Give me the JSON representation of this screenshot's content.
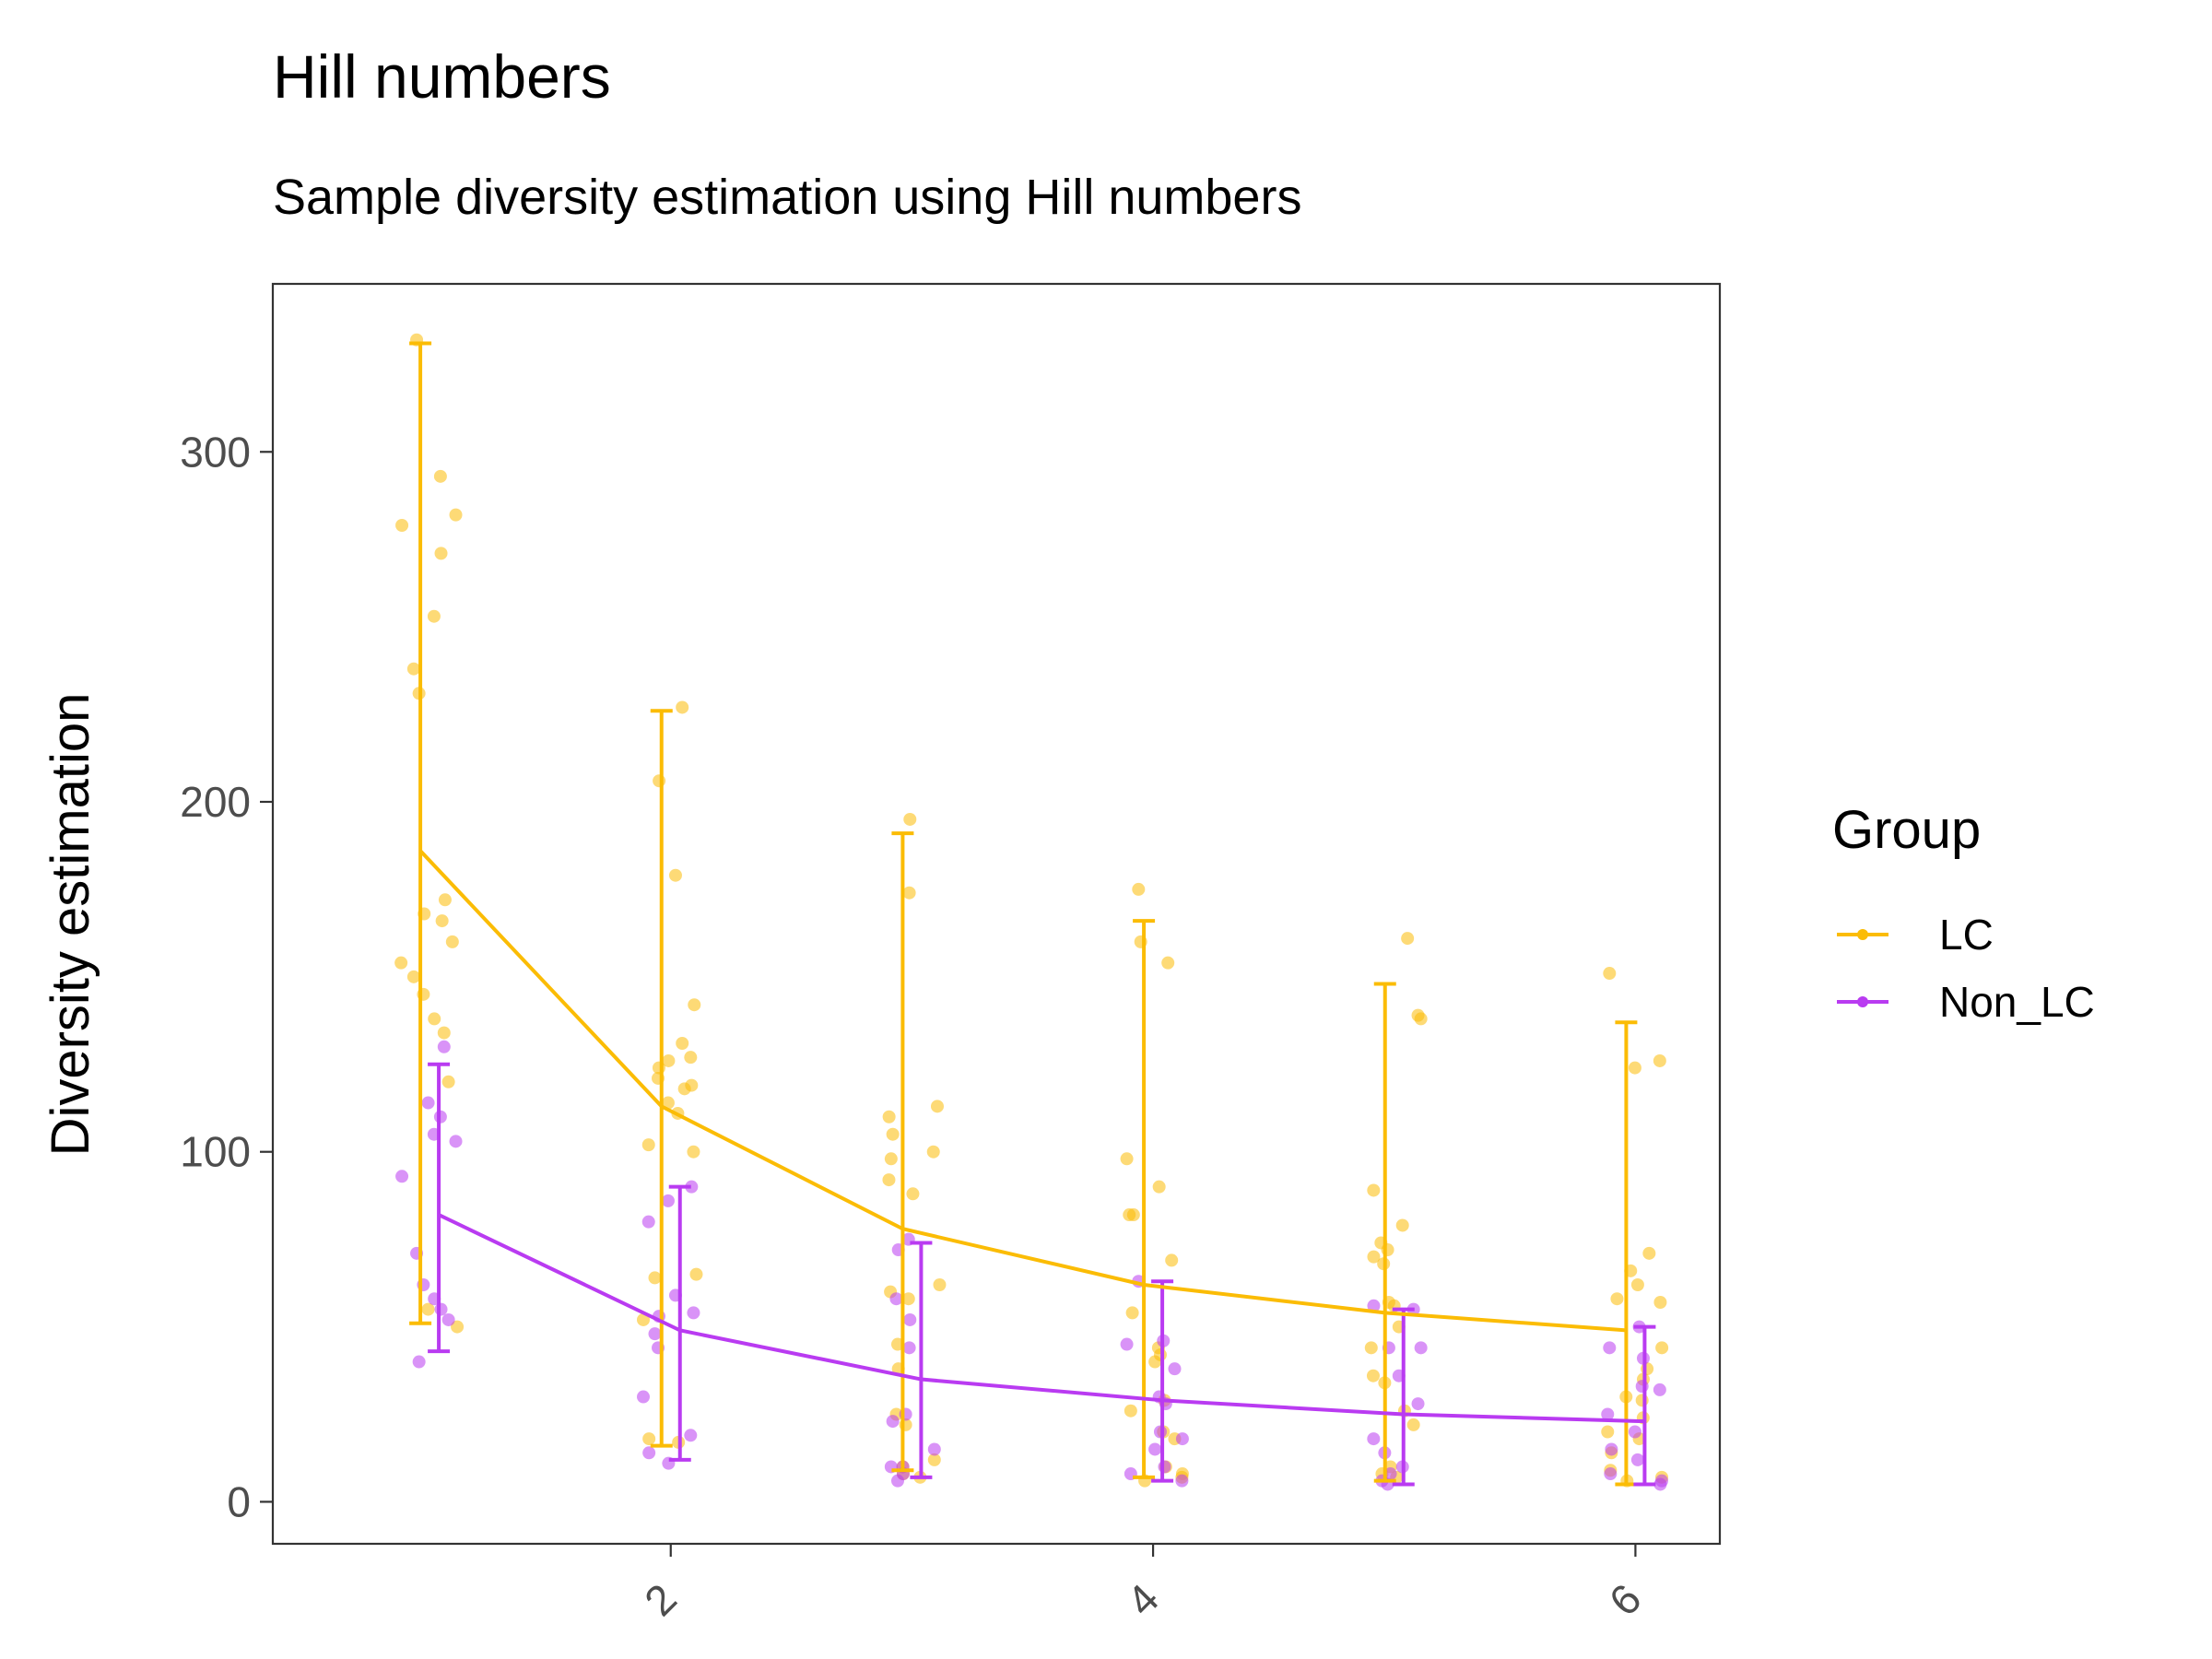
{
  "chart_data": {
    "type": "line",
    "title": "Hill numbers",
    "subtitle": "Sample diversity estimation using Hill numbers",
    "xlabel": "",
    "ylabel": "Diversity estimation",
    "x": [
      1,
      2,
      3,
      4,
      5,
      6
    ],
    "xlim": [
      0.35,
      6.35
    ],
    "ylim": [
      -12,
      348
    ],
    "x_ticks": [
      2,
      4,
      6
    ],
    "y_ticks": [
      0,
      100,
      200,
      300
    ],
    "grid": false,
    "legend_title": "Group",
    "legend_position": "right",
    "series": [
      {
        "name": "LC",
        "color": "#FBBC05",
        "mean": [
          186,
          113,
          78,
          62,
          54,
          49
        ],
        "error_lower": [
          51,
          16,
          9,
          7,
          6,
          5
        ],
        "error_upper": [
          331,
          226,
          191,
          166,
          148,
          137
        ],
        "points": [
          [
            238,
            172,
            168,
            166,
            160,
            154,
            150,
            134,
            293,
            253,
            282,
            279,
            271,
            231,
            332,
            145,
            138,
            120,
            55,
            50
          ],
          [
            131,
            118,
            111,
            142,
            65,
            227,
            206,
            179,
            127,
            126,
            124,
            121,
            119,
            114,
            102,
            100,
            64,
            52,
            18,
            17
          ],
          [
            113,
            110,
            100,
            92,
            88,
            62,
            60,
            58,
            195,
            174,
            105,
            98,
            45,
            38,
            25,
            22,
            12,
            10,
            8,
            7
          ],
          [
            69,
            82,
            82,
            54,
            44,
            160,
            154,
            175,
            98,
            90,
            42,
            40,
            29,
            26,
            20,
            18,
            10,
            8,
            7,
            6
          ],
          [
            161,
            74,
            68,
            56,
            44,
            36,
            26,
            22,
            138,
            139,
            89,
            79,
            72,
            70,
            57,
            50,
            34,
            10,
            8,
            7
          ],
          [
            71,
            66,
            58,
            44,
            38,
            30,
            24,
            18,
            151,
            126,
            124,
            62,
            57,
            35,
            29,
            20,
            14,
            9,
            7,
            6
          ]
        ]
      },
      {
        "name": "Non_LC",
        "color": "#B93BF1",
        "mean": [
          82,
          49,
          35,
          29,
          25,
          23
        ],
        "error_lower": [
          43,
          12,
          7,
          6,
          5,
          5
        ],
        "error_upper": [
          125,
          90,
          74,
          63,
          55,
          50
        ],
        "points": [
          [
            130,
            110,
            105,
            103,
            93,
            55,
            40,
            71,
            62,
            58,
            52,
            114
          ],
          [
            59,
            19,
            11,
            53,
            44,
            90,
            86,
            80,
            54,
            48,
            30,
            14
          ],
          [
            75,
            52,
            44,
            23,
            10,
            6,
            72,
            58,
            25,
            15,
            10,
            8
          ],
          [
            63,
            45,
            30,
            20,
            15,
            10,
            8,
            46,
            38,
            28,
            18,
            6
          ],
          [
            55,
            44,
            28,
            18,
            10,
            5,
            56,
            44,
            36,
            14,
            8,
            6
          ],
          [
            50,
            44,
            32,
            20,
            12,
            5,
            41,
            33,
            25,
            15,
            8,
            6
          ]
        ]
      }
    ]
  }
}
